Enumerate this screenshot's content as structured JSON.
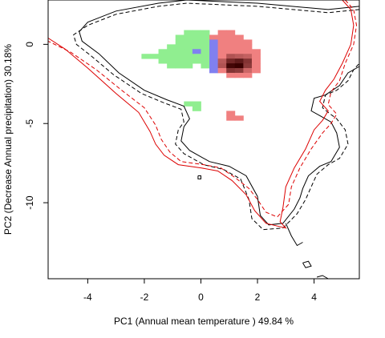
{
  "chart_data": {
    "type": "heatmap",
    "title": "",
    "xlabel": "PC1 (Annual mean temperature ) 49.84 %",
    "ylabel": "PC2 (Decrease Annual precipitation) 30.18%",
    "xlim": [
      -5.4,
      5.6
    ],
    "ylim": [
      -14.8,
      2.8
    ],
    "xticks": [
      -4,
      -2,
      0,
      2,
      4
    ],
    "yticks": [
      0,
      -5,
      -10
    ],
    "xtick_labels": [
      "-4",
      "-2",
      "0",
      "2",
      "4"
    ],
    "ytick_labels": [
      "0",
      "-5",
      "-10"
    ],
    "grid": false,
    "legend": "none",
    "colors": {
      "red_contour": "#dd0000",
      "black_contour": "#000000",
      "green_density": "#90ee90",
      "red_density": "#f08080",
      "dark_overlap": "#7a1a1a",
      "blue_overlap": "#8080f0"
    },
    "cell_size": [
      0.3,
      0.3
    ],
    "density_cells": [
      {
        "x": -1.95,
        "y": -0.75,
        "fill": "green"
      },
      {
        "x": -1.65,
        "y": -0.75,
        "fill": "green"
      },
      {
        "x": -1.35,
        "y": -0.45,
        "fill": "green"
      },
      {
        "x": -1.35,
        "y": -0.75,
        "fill": "green"
      },
      {
        "x": -1.35,
        "y": -1.05,
        "fill": "green"
      },
      {
        "x": -1.05,
        "y": -0.15,
        "fill": "green"
      },
      {
        "x": -1.05,
        "y": -0.45,
        "fill": "green"
      },
      {
        "x": -1.05,
        "y": -0.75,
        "fill": "green"
      },
      {
        "x": -1.05,
        "y": -1.05,
        "fill": "green"
      },
      {
        "x": -1.05,
        "y": -1.35,
        "fill": "green"
      },
      {
        "x": -0.75,
        "y": 0.45,
        "fill": "green"
      },
      {
        "x": -0.75,
        "y": 0.15,
        "fill": "green"
      },
      {
        "x": -0.75,
        "y": -0.15,
        "fill": "green"
      },
      {
        "x": -0.75,
        "y": -0.45,
        "fill": "green"
      },
      {
        "x": -0.75,
        "y": -0.75,
        "fill": "green"
      },
      {
        "x": -0.75,
        "y": -1.05,
        "fill": "green"
      },
      {
        "x": -0.75,
        "y": -1.35,
        "fill": "green"
      },
      {
        "x": -0.45,
        "y": 0.75,
        "fill": "green"
      },
      {
        "x": -0.45,
        "y": 0.45,
        "fill": "green"
      },
      {
        "x": -0.45,
        "y": 0.15,
        "fill": "green"
      },
      {
        "x": -0.45,
        "y": -0.15,
        "fill": "green"
      },
      {
        "x": -0.45,
        "y": -0.45,
        "fill": "green"
      },
      {
        "x": -0.45,
        "y": -0.75,
        "fill": "green"
      },
      {
        "x": -0.45,
        "y": -1.05,
        "fill": "green"
      },
      {
        "x": -0.45,
        "y": -1.35,
        "fill": "green"
      },
      {
        "x": -0.15,
        "y": 0.75,
        "fill": "green"
      },
      {
        "x": -0.15,
        "y": 0.45,
        "fill": "green"
      },
      {
        "x": -0.15,
        "y": 0.15,
        "fill": "green"
      },
      {
        "x": -0.15,
        "y": -0.15,
        "fill": "green"
      },
      {
        "x": -0.15,
        "y": -0.45,
        "fill": "blue"
      },
      {
        "x": -0.15,
        "y": -0.75,
        "fill": "green"
      },
      {
        "x": -0.15,
        "y": -1.05,
        "fill": "green"
      },
      {
        "x": 0.15,
        "y": 0.75,
        "fill": "green"
      },
      {
        "x": 0.15,
        "y": 0.45,
        "fill": "green"
      },
      {
        "x": 0.15,
        "y": 0.15,
        "fill": "green"
      },
      {
        "x": 0.15,
        "y": -0.15,
        "fill": "green"
      },
      {
        "x": 0.15,
        "y": -0.45,
        "fill": "green"
      },
      {
        "x": 0.15,
        "y": -0.75,
        "fill": "green"
      },
      {
        "x": 0.15,
        "y": -1.05,
        "fill": "green"
      },
      {
        "x": 0.15,
        "y": -1.35,
        "fill": "green"
      },
      {
        "x": 0.45,
        "y": 0.45,
        "fill": "red"
      },
      {
        "x": 0.45,
        "y": 0.15,
        "fill": "blue"
      },
      {
        "x": 0.45,
        "y": -0.15,
        "fill": "blue"
      },
      {
        "x": 0.45,
        "y": -0.45,
        "fill": "blue"
      },
      {
        "x": 0.45,
        "y": -0.75,
        "fill": "blue"
      },
      {
        "x": 0.45,
        "y": -1.05,
        "fill": "blue"
      },
      {
        "x": 0.45,
        "y": -1.35,
        "fill": "blue"
      },
      {
        "x": 0.45,
        "y": -1.65,
        "fill": "blue"
      },
      {
        "x": 0.75,
        "y": 0.75,
        "fill": "red"
      },
      {
        "x": 0.75,
        "y": 0.45,
        "fill": "red"
      },
      {
        "x": 0.75,
        "y": 0.15,
        "fill": "red"
      },
      {
        "x": 0.75,
        "y": -0.15,
        "fill": "red"
      },
      {
        "x": 0.75,
        "y": -0.45,
        "fill": "red"
      },
      {
        "x": 0.75,
        "y": -0.75,
        "fill": "red"
      },
      {
        "x": 0.75,
        "y": -1.05,
        "fill": "red",
        "dark": 0.3
      },
      {
        "x": 0.75,
        "y": -1.35,
        "fill": "red",
        "dark": 0.35
      },
      {
        "x": 0.75,
        "y": -1.65,
        "fill": "red"
      },
      {
        "x": 1.05,
        "y": 0.75,
        "fill": "red"
      },
      {
        "x": 1.05,
        "y": 0.45,
        "fill": "red"
      },
      {
        "x": 1.05,
        "y": 0.15,
        "fill": "red"
      },
      {
        "x": 1.05,
        "y": -0.15,
        "fill": "red"
      },
      {
        "x": 1.05,
        "y": -0.45,
        "fill": "red"
      },
      {
        "x": 1.05,
        "y": -0.75,
        "fill": "red",
        "dark": 0.35
      },
      {
        "x": 1.05,
        "y": -1.05,
        "fill": "red",
        "dark": 0.7
      },
      {
        "x": 1.05,
        "y": -1.35,
        "fill": "red",
        "dark": 0.95
      },
      {
        "x": 1.05,
        "y": -1.65,
        "fill": "red",
        "dark": 0.6
      },
      {
        "x": 1.05,
        "y": -1.95,
        "fill": "red"
      },
      {
        "x": 1.35,
        "y": 0.45,
        "fill": "red"
      },
      {
        "x": 1.35,
        "y": 0.15,
        "fill": "red"
      },
      {
        "x": 1.35,
        "y": -0.15,
        "fill": "red"
      },
      {
        "x": 1.35,
        "y": -0.45,
        "fill": "red"
      },
      {
        "x": 1.35,
        "y": -0.75,
        "fill": "red",
        "dark": 0.3
      },
      {
        "x": 1.35,
        "y": -1.05,
        "fill": "red",
        "dark": 0.8
      },
      {
        "x": 1.35,
        "y": -1.35,
        "fill": "red",
        "dark": 1.0
      },
      {
        "x": 1.35,
        "y": -1.65,
        "fill": "red",
        "dark": 0.55
      },
      {
        "x": 1.35,
        "y": -1.95,
        "fill": "red"
      },
      {
        "x": 1.65,
        "y": 0.15,
        "fill": "red"
      },
      {
        "x": 1.65,
        "y": -0.15,
        "fill": "red"
      },
      {
        "x": 1.65,
        "y": -0.45,
        "fill": "red"
      },
      {
        "x": 1.65,
        "y": -0.75,
        "fill": "red",
        "dark": 0.25
      },
      {
        "x": 1.65,
        "y": -1.05,
        "fill": "red",
        "dark": 0.6
      },
      {
        "x": 1.65,
        "y": -1.35,
        "fill": "red",
        "dark": 0.55
      },
      {
        "x": 1.65,
        "y": -1.65,
        "fill": "red",
        "dark": 0.2
      },
      {
        "x": 1.65,
        "y": -1.95,
        "fill": "red"
      },
      {
        "x": 1.95,
        "y": -0.45,
        "fill": "red"
      },
      {
        "x": 1.95,
        "y": -0.75,
        "fill": "red"
      },
      {
        "x": 1.95,
        "y": -1.05,
        "fill": "red"
      },
      {
        "x": 1.95,
        "y": -1.35,
        "fill": "red"
      },
      {
        "x": 1.95,
        "y": -1.65,
        "fill": "red"
      },
      {
        "x": -0.15,
        "y": -3.75,
        "fill": "green"
      },
      {
        "x": -0.45,
        "y": -3.75,
        "fill": "green"
      },
      {
        "x": -0.15,
        "y": -4.05,
        "fill": "green"
      },
      {
        "x": 1.05,
        "y": -4.65,
        "fill": "red"
      },
      {
        "x": 1.35,
        "y": -4.65,
        "fill": "red"
      },
      {
        "x": 1.05,
        "y": -4.35,
        "fill": "red"
      }
    ],
    "contours": [
      {
        "color": "black",
        "dash": "solid",
        "points": [
          [
            5.6,
            2.4
          ],
          [
            4.5,
            2.2
          ],
          [
            2.0,
            2.6
          ],
          [
            -0.5,
            2.8
          ],
          [
            -1.5,
            2.6
          ],
          [
            -3.0,
            2.1
          ],
          [
            -4.0,
            1.4
          ],
          [
            -4.3,
            0.8
          ],
          [
            -4.2,
            0.2
          ],
          [
            -3.6,
            -0.6
          ],
          [
            -2.9,
            -1.8
          ],
          [
            -2.0,
            -2.9
          ],
          [
            -1.2,
            -3.5
          ],
          [
            -0.6,
            -3.9
          ],
          [
            -0.4,
            -4.7
          ],
          [
            -0.6,
            -5.2
          ],
          [
            -0.7,
            -6.1
          ],
          [
            -0.4,
            -6.7
          ],
          [
            0.3,
            -7.4
          ],
          [
            1.0,
            -7.7
          ],
          [
            1.6,
            -8.3
          ],
          [
            2.0,
            -9.6
          ],
          [
            2.1,
            -10.8
          ],
          [
            2.4,
            -11.4
          ],
          [
            2.9,
            -11.3
          ],
          [
            3.3,
            -10.4
          ],
          [
            3.5,
            -9.7
          ],
          [
            3.6,
            -9.1
          ],
          [
            3.8,
            -8.3
          ],
          [
            4.2,
            -7.7
          ],
          [
            4.6,
            -7.4
          ],
          [
            4.9,
            -6.5
          ],
          [
            4.8,
            -5.6
          ],
          [
            4.6,
            -4.9
          ],
          [
            4.2,
            -4.5
          ],
          [
            3.9,
            -4.2
          ],
          [
            4.0,
            -3.4
          ],
          [
            4.4,
            -3.2
          ],
          [
            4.9,
            -2.6
          ],
          [
            5.2,
            -1.8
          ],
          [
            5.6,
            -1.4
          ]
        ]
      },
      {
        "color": "black",
        "dash": "dashed",
        "points": [
          [
            5.6,
            2.2
          ],
          [
            4.5,
            2.0
          ],
          [
            2.0,
            2.4
          ],
          [
            -0.5,
            2.6
          ],
          [
            -1.5,
            2.4
          ],
          [
            -3.0,
            1.9
          ],
          [
            -4.0,
            1.2
          ],
          [
            -4.5,
            0.6
          ],
          [
            -4.4,
            0.0
          ],
          [
            -3.9,
            -0.7
          ],
          [
            -3.1,
            -1.9
          ],
          [
            -2.1,
            -3.1
          ],
          [
            -1.3,
            -3.7
          ],
          [
            -0.7,
            -4.1
          ],
          [
            -0.6,
            -4.9
          ],
          [
            -0.8,
            -5.4
          ],
          [
            -0.9,
            -6.3
          ],
          [
            -0.6,
            -6.9
          ],
          [
            0.1,
            -7.6
          ],
          [
            0.8,
            -7.9
          ],
          [
            1.4,
            -8.5
          ],
          [
            1.7,
            -9.8
          ],
          [
            1.8,
            -11.0
          ],
          [
            2.2,
            -11.7
          ],
          [
            2.9,
            -11.6
          ],
          [
            3.4,
            -10.7
          ],
          [
            3.7,
            -9.8
          ],
          [
            3.9,
            -9.0
          ],
          [
            4.1,
            -8.2
          ],
          [
            4.5,
            -7.6
          ],
          [
            4.9,
            -7.2
          ],
          [
            5.2,
            -6.3
          ],
          [
            5.1,
            -5.4
          ],
          [
            4.8,
            -4.7
          ],
          [
            4.5,
            -4.3
          ],
          [
            4.3,
            -4.0
          ],
          [
            4.4,
            -3.2
          ],
          [
            4.8,
            -2.9
          ],
          [
            5.2,
            -2.3
          ],
          [
            5.4,
            -1.6
          ],
          [
            5.6,
            -1.2
          ]
        ]
      },
      {
        "color": "red",
        "dash": "solid",
        "points": [
          [
            5.0,
            2.8
          ],
          [
            5.3,
            2.2
          ],
          [
            5.4,
            1.2
          ],
          [
            5.3,
            0.0
          ],
          [
            5.0,
            -1.2
          ],
          [
            4.7,
            -2.2
          ],
          [
            4.4,
            -2.9
          ],
          [
            4.2,
            -3.6
          ],
          [
            4.5,
            -4.2
          ],
          [
            4.3,
            -4.8
          ],
          [
            4.0,
            -5.4
          ],
          [
            3.7,
            -6.6
          ],
          [
            3.3,
            -7.8
          ],
          [
            3.0,
            -9.0
          ],
          [
            2.9,
            -10.3
          ],
          [
            2.8,
            -11.2
          ],
          [
            3.0,
            -11.6
          ],
          [
            2.3,
            -11.3
          ],
          [
            1.9,
            -10.5
          ],
          [
            1.6,
            -9.5
          ],
          [
            1.1,
            -8.6
          ],
          [
            0.6,
            -8.0
          ],
          [
            0.0,
            -7.8
          ],
          [
            -0.8,
            -7.6
          ],
          [
            -1.3,
            -7.0
          ],
          [
            -1.6,
            -6.3
          ],
          [
            -1.8,
            -5.5
          ],
          [
            -2.2,
            -4.3
          ],
          [
            -3.0,
            -3.1
          ],
          [
            -4.0,
            -1.5
          ],
          [
            -4.8,
            -0.3
          ],
          [
            -5.4,
            0.4
          ]
        ]
      },
      {
        "color": "red",
        "dash": "dashed",
        "points": [
          [
            5.1,
            2.8
          ],
          [
            5.4,
            2.2
          ],
          [
            5.5,
            1.2
          ],
          [
            5.4,
            0.0
          ],
          [
            5.1,
            -1.2
          ],
          [
            4.9,
            -2.3
          ],
          [
            4.6,
            -3.0
          ],
          [
            4.5,
            -3.8
          ],
          [
            4.8,
            -4.4
          ],
          [
            4.6,
            -5.0
          ],
          [
            4.3,
            -5.6
          ],
          [
            3.9,
            -6.6
          ],
          [
            3.5,
            -7.8
          ],
          [
            3.2,
            -9.0
          ],
          [
            3.1,
            -10.1
          ],
          [
            2.7,
            -10.9
          ],
          [
            2.3,
            -10.6
          ],
          [
            2.0,
            -9.8
          ],
          [
            1.7,
            -9.1
          ],
          [
            1.2,
            -8.4
          ],
          [
            0.7,
            -7.8
          ],
          [
            0.1,
            -7.6
          ],
          [
            -0.7,
            -7.4
          ],
          [
            -1.1,
            -6.8
          ],
          [
            -1.4,
            -6.0
          ],
          [
            -1.6,
            -5.1
          ],
          [
            -2.0,
            -4.0
          ],
          [
            -2.8,
            -2.9
          ],
          [
            -3.7,
            -1.6
          ],
          [
            -4.6,
            -0.5
          ],
          [
            -5.4,
            0.2
          ]
        ]
      },
      {
        "color": "black",
        "dash": "solid",
        "points": [
          [
            3.0,
            -11.3
          ],
          [
            3.2,
            -12.1
          ],
          [
            3.4,
            -12.7
          ],
          [
            3.6,
            -12.5
          ]
        ]
      },
      {
        "color": "black",
        "dash": "solid",
        "points": [
          [
            3.6,
            -13.8
          ],
          [
            3.8,
            -13.7
          ],
          [
            3.9,
            -14.0
          ],
          [
            3.7,
            -14.1
          ],
          [
            3.6,
            -13.8
          ]
        ]
      },
      {
        "color": "black",
        "dash": "solid",
        "points": [
          [
            4.1,
            -14.7
          ],
          [
            4.3,
            -14.6
          ],
          [
            4.5,
            -14.8
          ]
        ]
      },
      {
        "color": "black",
        "dash": "solid",
        "points": [
          [
            -0.1,
            -8.3
          ],
          [
            0.0,
            -8.3
          ],
          [
            0.0,
            -8.5
          ],
          [
            -0.1,
            -8.5
          ],
          [
            -0.1,
            -8.3
          ]
        ]
      }
    ]
  }
}
